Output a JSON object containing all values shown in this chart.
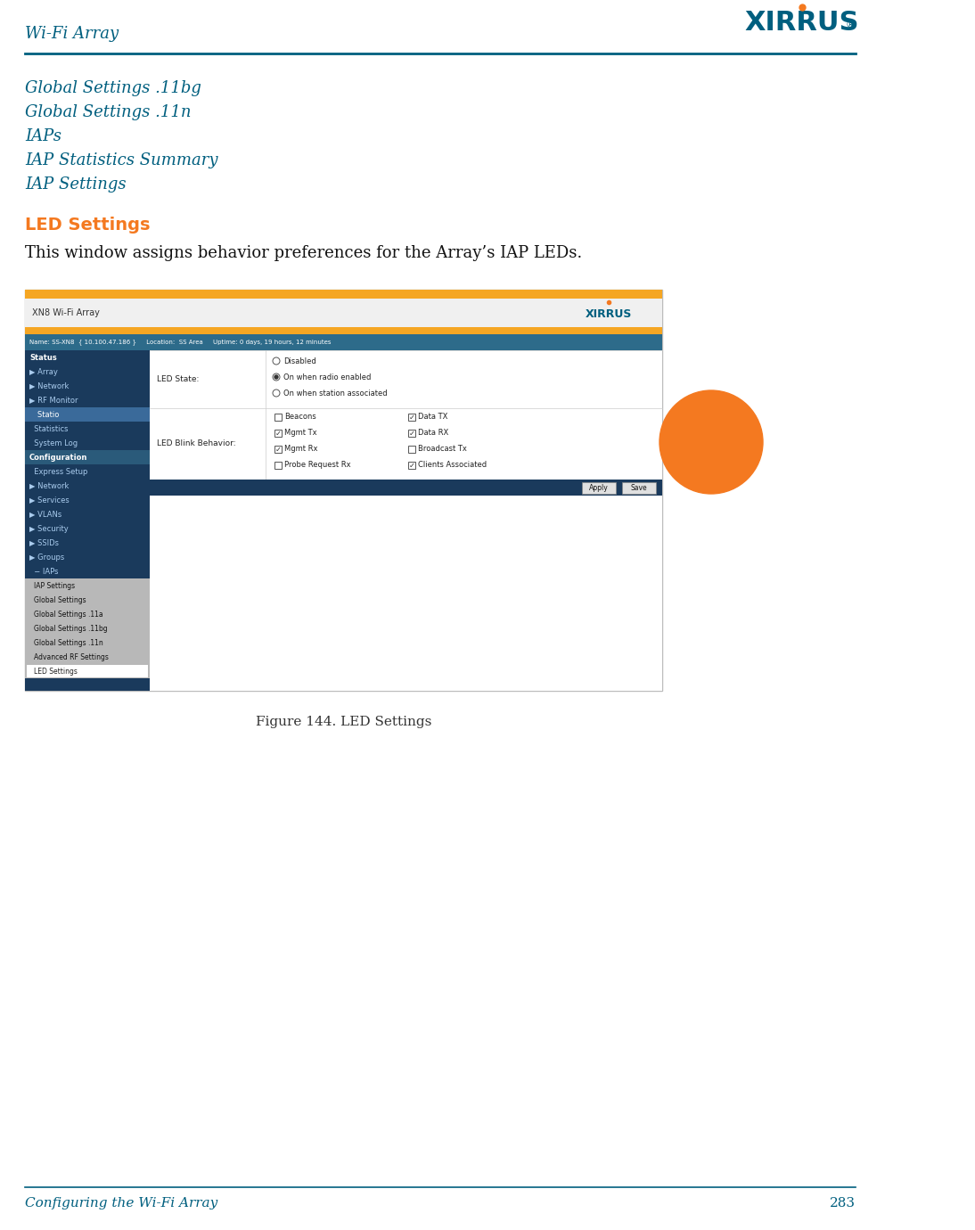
{
  "page_title": "Wi-Fi Array",
  "page_number": "283",
  "footer_text": "Configuring the Wi-Fi Array",
  "teal_color": "#005f7f",
  "orange_color": "#f47920",
  "nav_links": [
    "Global Settings .11bg",
    "Global Settings .11n",
    "IAPs",
    "IAP Statistics Summary",
    "IAP Settings"
  ],
  "section_heading": "LED Settings",
  "section_body": "This window assigns behavior preferences for the Array’s IAP LEDs.",
  "figure_caption": "Figure 144. LED Settings",
  "screenshot": {
    "top_bar_color": "#f5a623",
    "xn8_label": "XN8 Wi-Fi Array",
    "status_bar_text": "Name: SS-XN8  { 10.100.47.186 }     Location:  SS Area     Uptime: 0 days, 19 hours, 12 minutes",
    "status_bar_bg": "#2d6b8a",
    "left_nav_bg": "#1a3a5c",
    "left_nav_light_bg": "#c8c8c8",
    "left_nav_selected_bg": "#3a6a9a",
    "left_nav_items_main": [
      "Status",
      "Array",
      "Network",
      "RF Monitor",
      "Statio ",
      "Statistics",
      "System Log"
    ],
    "left_nav_config_items": [
      "Express Setup",
      "Network",
      "Services",
      "VLANs",
      "Security",
      "SSIDs",
      "Groups",
      "IAPs"
    ],
    "left_nav_iap_items": [
      "IAP Settings",
      "Global Settings",
      "Global Settings .11a",
      "Global Settings .11bg",
      "Global Settings .11n",
      "Advanced RF Settings",
      "LED Settings"
    ],
    "led_state_label": "LED State:",
    "led_state_options": [
      "Disabled",
      "On when radio enabled",
      "On when station associated"
    ],
    "led_state_selected": 1,
    "led_blink_label": "LED Blink Behavior:",
    "led_blink_col1": [
      "Beacons",
      "Mgmt Tx",
      "Mgmt Rx",
      "Probe Request Rx"
    ],
    "led_blink_col2": [
      "Data TX",
      "Data RX",
      "Broadcast Tx",
      "Clients Associated"
    ],
    "led_blink_checked_col1": [
      false,
      true,
      true,
      false
    ],
    "led_blink_checked_col2": [
      true,
      true,
      false,
      true
    ]
  }
}
